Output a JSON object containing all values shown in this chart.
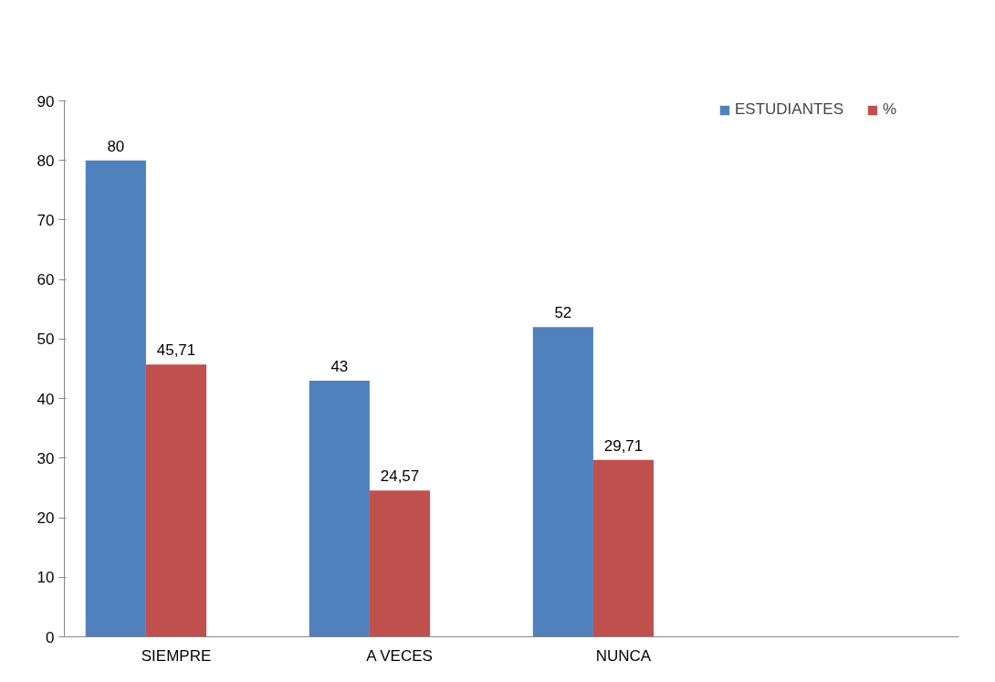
{
  "chart_data": {
    "type": "bar",
    "categories": [
      "SIEMPRE",
      "A VECES",
      "NUNCA",
      null
    ],
    "series": [
      {
        "name": "ESTUDIANTES",
        "color": "#4f81bd",
        "values": [
          80,
          43,
          52,
          null
        ],
        "value_labels": [
          "80",
          "43",
          "52",
          null
        ]
      },
      {
        "name": "%",
        "color": "#c0504d",
        "values": [
          45.71,
          24.57,
          29.71,
          null
        ],
        "value_labels": [
          "45,71",
          "24,57",
          "29,71",
          null
        ]
      },
      {
        "color": "#9bbb59",
        "values": [
          null,
          null,
          null,
          null
        ]
      }
    ],
    "ylim": [
      0,
      90
    ],
    "yticks": [
      0,
      10,
      20,
      30,
      40,
      50,
      60,
      70,
      80,
      90
    ],
    "grid": false,
    "legend": "top right"
  }
}
